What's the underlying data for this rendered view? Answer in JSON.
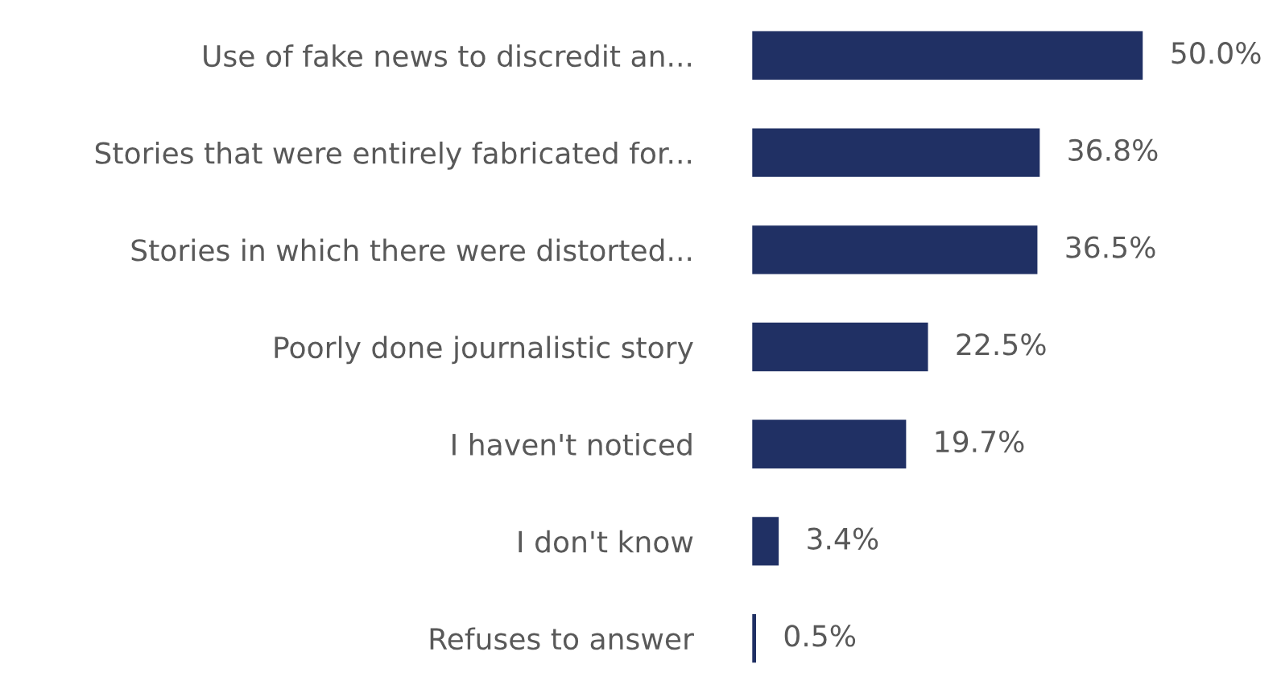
{
  "chart_data": {
    "type": "bar",
    "orientation": "horizontal",
    "categories": [
      "Use of fake news to discredit an...",
      "Stories that were entirely fabricated for...",
      "Stories in which there were distorted...",
      "Poorly done journalistic story",
      "I haven't noticed",
      "I don't know",
      "Refuses to answer"
    ],
    "values": [
      50.0,
      36.8,
      36.5,
      22.5,
      19.7,
      3.4,
      0.5
    ],
    "value_labels": [
      "50.0%",
      "36.8%",
      "36.5%",
      "22.5%",
      "19.7%",
      "3.4%",
      "0.5%"
    ],
    "color": "#203064",
    "grid": false,
    "legend": false
  }
}
